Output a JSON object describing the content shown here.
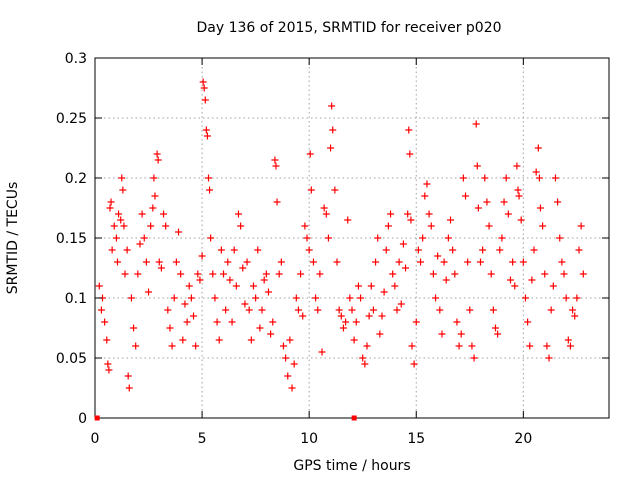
{
  "chart_data": {
    "type": "scatter",
    "title": "Day 136 of 2015, SRMTID for receiver p020",
    "xlabel": "GPS time / hours",
    "ylabel": "SRMTID / TECUs",
    "xlim": [
      0,
      24
    ],
    "ylim": [
      0,
      0.3
    ],
    "xticks": [
      "0",
      "5",
      "10",
      "15",
      "20"
    ],
    "yticks": [
      "0",
      "0.05",
      "0.1",
      "0.15",
      "0.2",
      "0.25",
      "0.3"
    ],
    "grid": true,
    "marker": "+",
    "color": "#ff0000",
    "zero_markers": [
      0.1,
      12.1
    ],
    "series": [
      {
        "name": "SRMTID",
        "points": [
          [
            0.2,
            0.11
          ],
          [
            0.3,
            0.09
          ],
          [
            0.35,
            0.1
          ],
          [
            0.45,
            0.08
          ],
          [
            0.55,
            0.065
          ],
          [
            0.6,
            0.045
          ],
          [
            0.65,
            0.04
          ],
          [
            0.7,
            0.175
          ],
          [
            0.75,
            0.18
          ],
          [
            0.8,
            0.14
          ],
          [
            0.9,
            0.16
          ],
          [
            1.0,
            0.15
          ],
          [
            1.05,
            0.13
          ],
          [
            1.1,
            0.17
          ],
          [
            1.2,
            0.165
          ],
          [
            1.25,
            0.2
          ],
          [
            1.3,
            0.19
          ],
          [
            1.35,
            0.16
          ],
          [
            1.4,
            0.12
          ],
          [
            1.5,
            0.14
          ],
          [
            1.55,
            0.035
          ],
          [
            1.6,
            0.025
          ],
          [
            1.7,
            0.1
          ],
          [
            1.8,
            0.075
          ],
          [
            1.9,
            0.06
          ],
          [
            2.0,
            0.12
          ],
          [
            2.1,
            0.145
          ],
          [
            2.2,
            0.17
          ],
          [
            2.3,
            0.15
          ],
          [
            2.4,
            0.13
          ],
          [
            2.5,
            0.105
          ],
          [
            2.6,
            0.16
          ],
          [
            2.7,
            0.175
          ],
          [
            2.75,
            0.2
          ],
          [
            2.8,
            0.185
          ],
          [
            2.9,
            0.22
          ],
          [
            2.95,
            0.215
          ],
          [
            3.0,
            0.13
          ],
          [
            3.1,
            0.125
          ],
          [
            3.2,
            0.17
          ],
          [
            3.3,
            0.16
          ],
          [
            3.4,
            0.09
          ],
          [
            3.5,
            0.075
          ],
          [
            3.6,
            0.06
          ],
          [
            3.7,
            0.1
          ],
          [
            3.8,
            0.13
          ],
          [
            3.9,
            0.155
          ],
          [
            4.0,
            0.12
          ],
          [
            4.1,
            0.065
          ],
          [
            4.2,
            0.095
          ],
          [
            4.3,
            0.08
          ],
          [
            4.4,
            0.11
          ],
          [
            4.5,
            0.1
          ],
          [
            4.6,
            0.085
          ],
          [
            4.7,
            0.06
          ],
          [
            4.8,
            0.12
          ],
          [
            4.9,
            0.115
          ],
          [
            5.0,
            0.135
          ],
          [
            5.05,
            0.28
          ],
          [
            5.1,
            0.275
          ],
          [
            5.15,
            0.265
          ],
          [
            5.2,
            0.24
          ],
          [
            5.25,
            0.235
          ],
          [
            5.3,
            0.2
          ],
          [
            5.35,
            0.19
          ],
          [
            5.4,
            0.15
          ],
          [
            5.5,
            0.12
          ],
          [
            5.6,
            0.1
          ],
          [
            5.7,
            0.08
          ],
          [
            5.8,
            0.065
          ],
          [
            5.9,
            0.14
          ],
          [
            6.0,
            0.12
          ],
          [
            6.1,
            0.09
          ],
          [
            6.2,
            0.13
          ],
          [
            6.3,
            0.115
          ],
          [
            6.4,
            0.08
          ],
          [
            6.5,
            0.14
          ],
          [
            6.6,
            0.11
          ],
          [
            6.7,
            0.17
          ],
          [
            6.8,
            0.16
          ],
          [
            6.9,
            0.125
          ],
          [
            7.0,
            0.095
          ],
          [
            7.1,
            0.13
          ],
          [
            7.2,
            0.09
          ],
          [
            7.3,
            0.065
          ],
          [
            7.4,
            0.11
          ],
          [
            7.5,
            0.1
          ],
          [
            7.6,
            0.14
          ],
          [
            7.7,
            0.075
          ],
          [
            7.8,
            0.09
          ],
          [
            7.9,
            0.115
          ],
          [
            8.0,
            0.12
          ],
          [
            8.1,
            0.105
          ],
          [
            8.2,
            0.07
          ],
          [
            8.3,
            0.08
          ],
          [
            8.4,
            0.215
          ],
          [
            8.45,
            0.21
          ],
          [
            8.5,
            0.18
          ],
          [
            8.6,
            0.12
          ],
          [
            8.7,
            0.13
          ],
          [
            8.8,
            0.06
          ],
          [
            8.9,
            0.05
          ],
          [
            9.0,
            0.035
          ],
          [
            9.1,
            0.065
          ],
          [
            9.2,
            0.025
          ],
          [
            9.3,
            0.045
          ],
          [
            9.4,
            0.1
          ],
          [
            9.5,
            0.09
          ],
          [
            9.6,
            0.12
          ],
          [
            9.7,
            0.085
          ],
          [
            9.8,
            0.16
          ],
          [
            9.9,
            0.15
          ],
          [
            10.0,
            0.14
          ],
          [
            10.05,
            0.22
          ],
          [
            10.1,
            0.19
          ],
          [
            10.2,
            0.13
          ],
          [
            10.3,
            0.1
          ],
          [
            10.4,
            0.09
          ],
          [
            10.5,
            0.12
          ],
          [
            10.6,
            0.055
          ],
          [
            10.7,
            0.175
          ],
          [
            10.8,
            0.17
          ],
          [
            10.9,
            0.15
          ],
          [
            11.0,
            0.225
          ],
          [
            11.05,
            0.26
          ],
          [
            11.1,
            0.24
          ],
          [
            11.2,
            0.19
          ],
          [
            11.3,
            0.13
          ],
          [
            11.4,
            0.09
          ],
          [
            11.5,
            0.085
          ],
          [
            11.6,
            0.075
          ],
          [
            11.7,
            0.08
          ],
          [
            11.8,
            0.165
          ],
          [
            11.9,
            0.1
          ],
          [
            12.0,
            0.09
          ],
          [
            12.1,
            0.065
          ],
          [
            12.2,
            0.08
          ],
          [
            12.3,
            0.11
          ],
          [
            12.4,
            0.1
          ],
          [
            12.5,
            0.05
          ],
          [
            12.6,
            0.045
          ],
          [
            12.7,
            0.06
          ],
          [
            12.8,
            0.085
          ],
          [
            12.9,
            0.11
          ],
          [
            13.0,
            0.09
          ],
          [
            13.1,
            0.13
          ],
          [
            13.2,
            0.15
          ],
          [
            13.3,
            0.07
          ],
          [
            13.4,
            0.085
          ],
          [
            13.5,
            0.105
          ],
          [
            13.6,
            0.14
          ],
          [
            13.7,
            0.16
          ],
          [
            13.8,
            0.17
          ],
          [
            13.9,
            0.12
          ],
          [
            14.0,
            0.11
          ],
          [
            14.1,
            0.09
          ],
          [
            14.2,
            0.13
          ],
          [
            14.3,
            0.095
          ],
          [
            14.4,
            0.145
          ],
          [
            14.5,
            0.125
          ],
          [
            14.6,
            0.17
          ],
          [
            14.65,
            0.24
          ],
          [
            14.7,
            0.22
          ],
          [
            14.75,
            0.165
          ],
          [
            14.8,
            0.06
          ],
          [
            14.9,
            0.045
          ],
          [
            15.0,
            0.08
          ],
          [
            15.1,
            0.14
          ],
          [
            15.2,
            0.13
          ],
          [
            15.3,
            0.15
          ],
          [
            15.4,
            0.185
          ],
          [
            15.5,
            0.195
          ],
          [
            15.6,
            0.17
          ],
          [
            15.7,
            0.16
          ],
          [
            15.8,
            0.12
          ],
          [
            15.9,
            0.1
          ],
          [
            16.0,
            0.135
          ],
          [
            16.1,
            0.09
          ],
          [
            16.2,
            0.07
          ],
          [
            16.3,
            0.13
          ],
          [
            16.4,
            0.115
          ],
          [
            16.5,
            0.15
          ],
          [
            16.6,
            0.165
          ],
          [
            16.7,
            0.14
          ],
          [
            16.8,
            0.12
          ],
          [
            16.9,
            0.08
          ],
          [
            17.0,
            0.06
          ],
          [
            17.1,
            0.07
          ],
          [
            17.2,
            0.2
          ],
          [
            17.3,
            0.185
          ],
          [
            17.4,
            0.13
          ],
          [
            17.5,
            0.09
          ],
          [
            17.6,
            0.06
          ],
          [
            17.7,
            0.05
          ],
          [
            17.8,
            0.245
          ],
          [
            17.85,
            0.21
          ],
          [
            17.9,
            0.175
          ],
          [
            18.0,
            0.13
          ],
          [
            18.1,
            0.14
          ],
          [
            18.2,
            0.2
          ],
          [
            18.3,
            0.18
          ],
          [
            18.4,
            0.16
          ],
          [
            18.5,
            0.12
          ],
          [
            18.6,
            0.09
          ],
          [
            18.7,
            0.075
          ],
          [
            18.8,
            0.07
          ],
          [
            18.9,
            0.14
          ],
          [
            19.0,
            0.15
          ],
          [
            19.1,
            0.18
          ],
          [
            19.2,
            0.2
          ],
          [
            19.3,
            0.17
          ],
          [
            19.4,
            0.115
          ],
          [
            19.5,
            0.13
          ],
          [
            19.6,
            0.11
          ],
          [
            19.7,
            0.21
          ],
          [
            19.75,
            0.19
          ],
          [
            19.8,
            0.185
          ],
          [
            19.9,
            0.165
          ],
          [
            20.0,
            0.13
          ],
          [
            20.1,
            0.1
          ],
          [
            20.2,
            0.08
          ],
          [
            20.3,
            0.06
          ],
          [
            20.4,
            0.115
          ],
          [
            20.5,
            0.14
          ],
          [
            20.6,
            0.205
          ],
          [
            20.7,
            0.225
          ],
          [
            20.75,
            0.2
          ],
          [
            20.8,
            0.175
          ],
          [
            20.9,
            0.16
          ],
          [
            21.0,
            0.12
          ],
          [
            21.1,
            0.06
          ],
          [
            21.2,
            0.05
          ],
          [
            21.3,
            0.09
          ],
          [
            21.4,
            0.11
          ],
          [
            21.5,
            0.2
          ],
          [
            21.6,
            0.18
          ],
          [
            21.7,
            0.15
          ],
          [
            21.8,
            0.13
          ],
          [
            21.9,
            0.12
          ],
          [
            22.0,
            0.1
          ],
          [
            22.1,
            0.065
          ],
          [
            22.2,
            0.06
          ],
          [
            22.3,
            0.09
          ],
          [
            22.4,
            0.085
          ],
          [
            22.5,
            0.1
          ],
          [
            22.6,
            0.14
          ],
          [
            22.7,
            0.16
          ],
          [
            22.8,
            0.12
          ]
        ]
      }
    ]
  }
}
